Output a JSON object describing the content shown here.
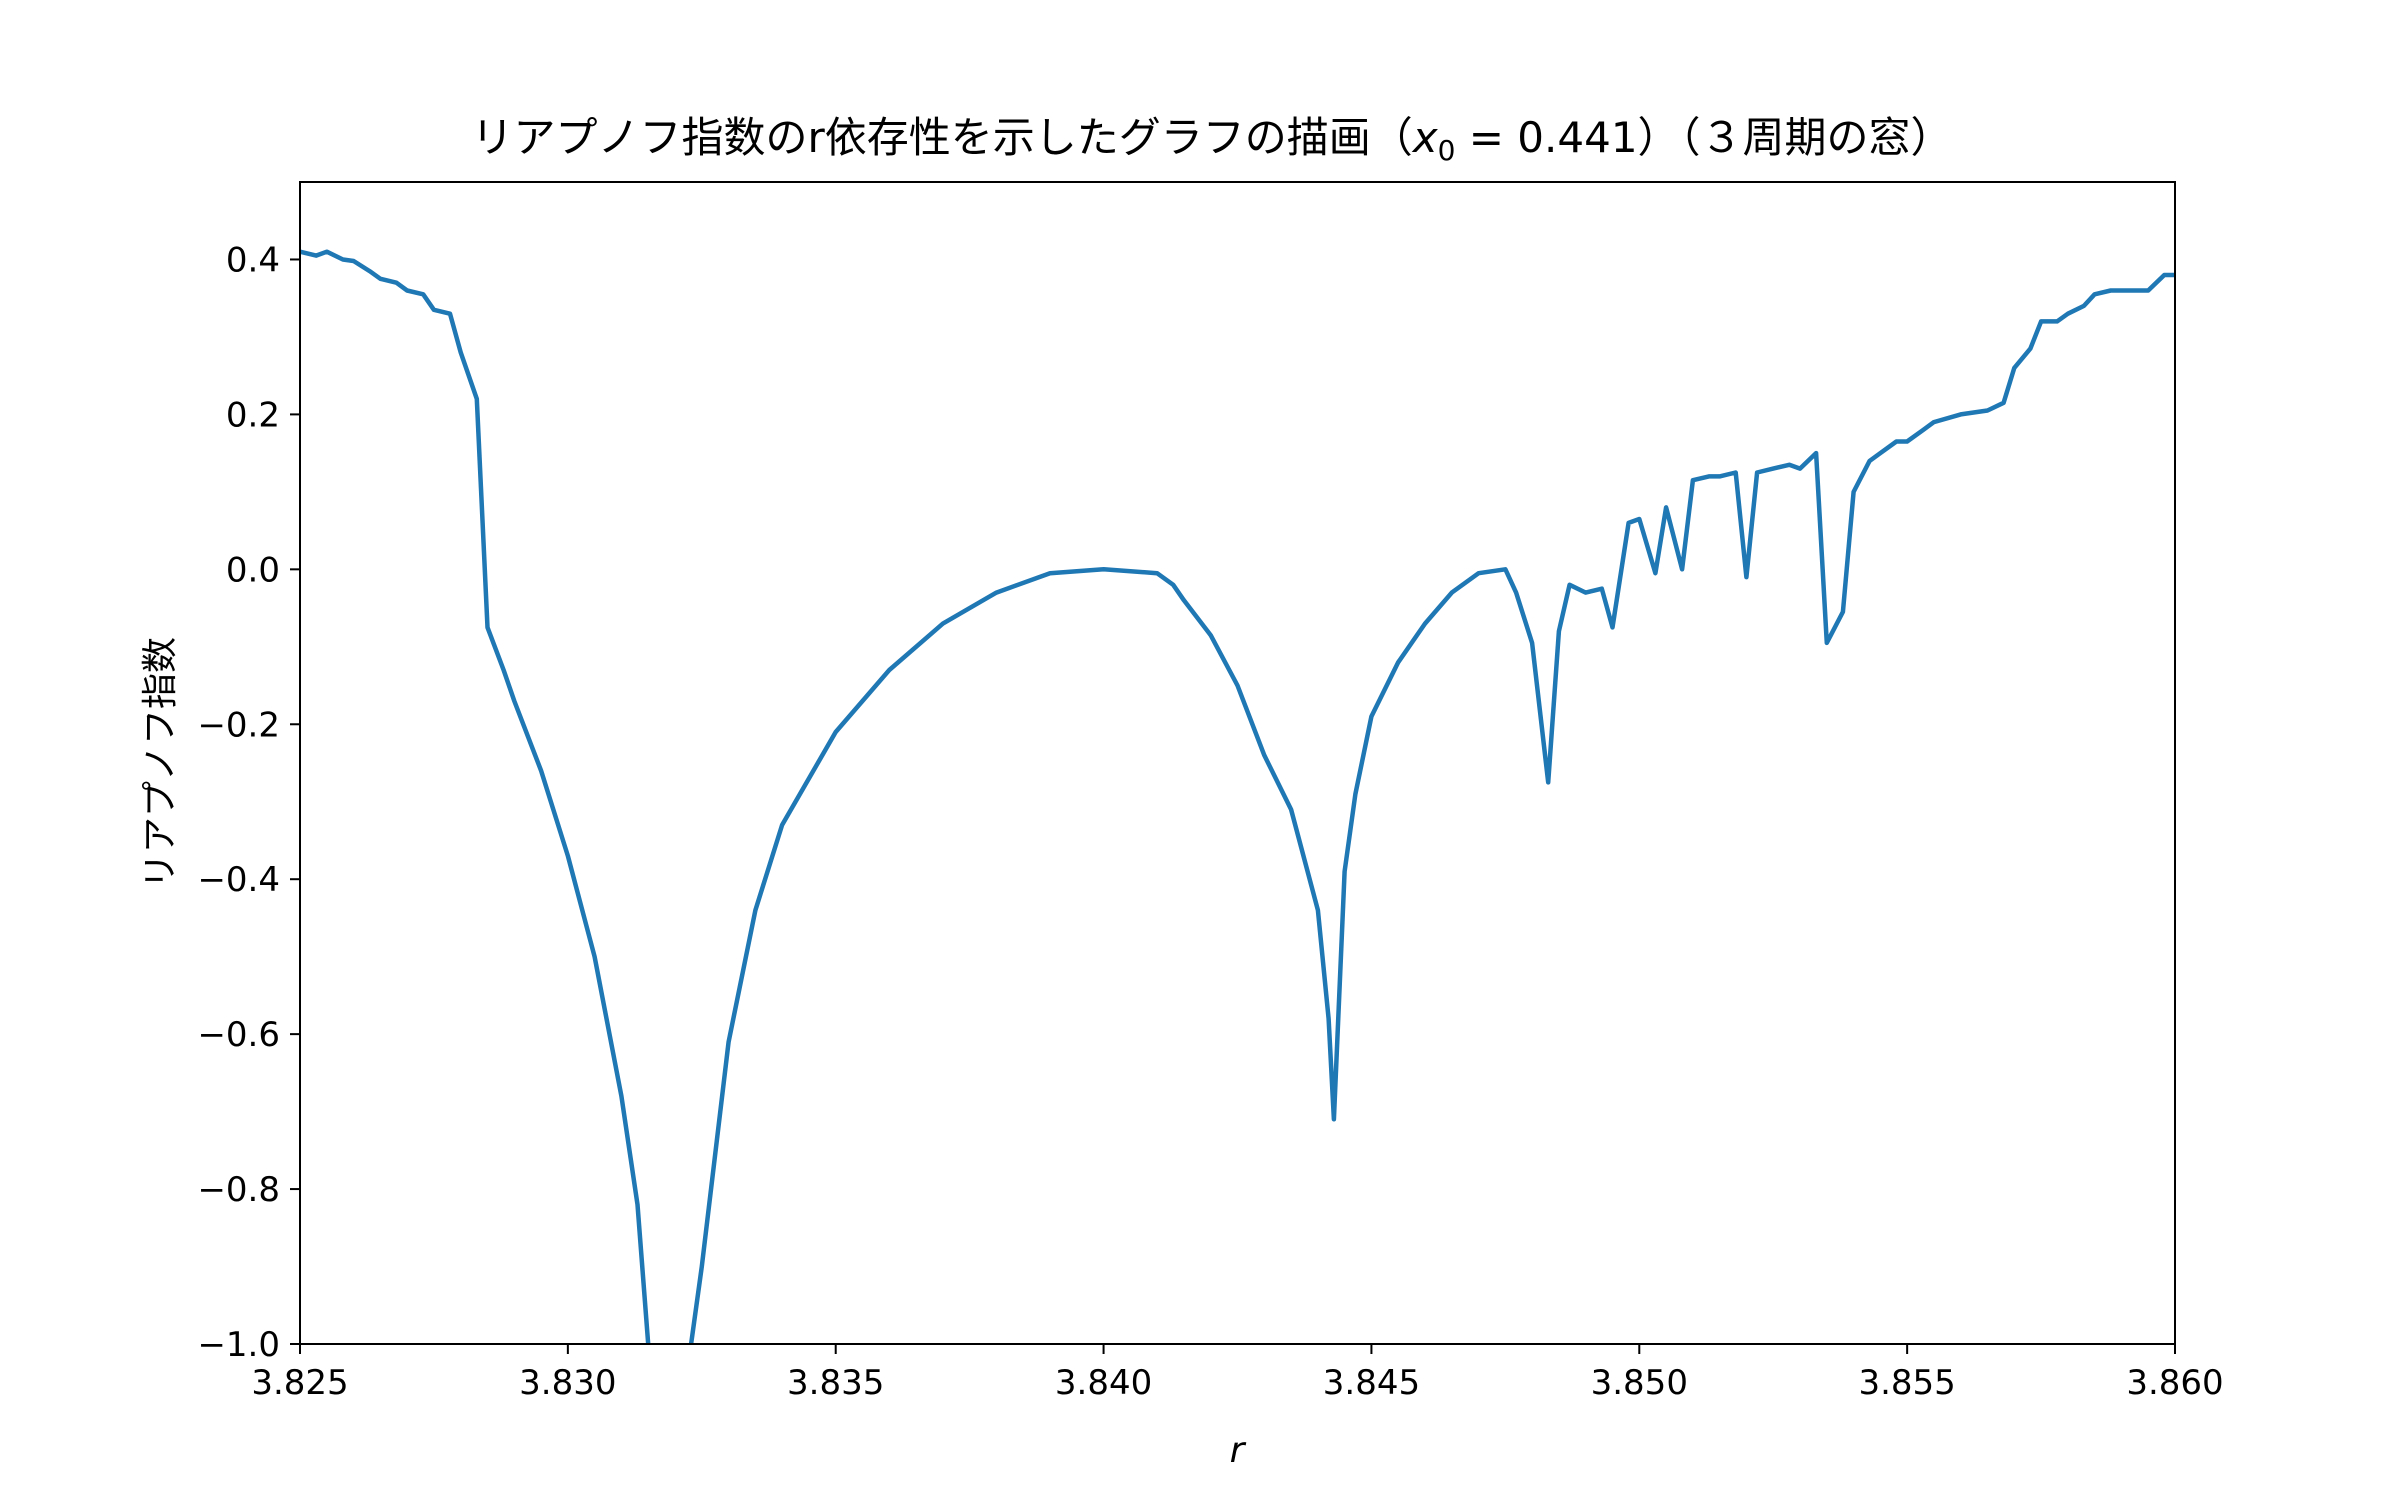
{
  "chart_data": {
    "type": "line",
    "title_prefix": "リアプノフ指数のr依存性を示したグラフの描画（",
    "title_var": "x",
    "title_sub": "0",
    "title_suffix": " = 0.441）（３周期の窓）",
    "xlabel": "r",
    "ylabel": "リアプノフ指数",
    "xlim": [
      3.825,
      3.86
    ],
    "ylim": [
      -1.0,
      0.5
    ],
    "xticks": [
      3.825,
      3.83,
      3.835,
      3.84,
      3.845,
      3.85,
      3.855,
      3.86
    ],
    "xtick_labels": [
      "3.825",
      "3.830",
      "3.835",
      "3.840",
      "3.845",
      "3.850",
      "3.855",
      "3.860"
    ],
    "yticks": [
      0.4,
      0.2,
      0.0,
      -0.2,
      -0.4,
      -0.6,
      -0.8,
      -1.0
    ],
    "ytick_labels": [
      "0.4",
      "0.2",
      "0.0",
      "−0.2",
      "−0.4",
      "−0.6",
      "−0.8",
      "−1.0"
    ],
    "grid": false,
    "line_color": "#1f77b4",
    "series": [
      {
        "x": [
          3.825,
          3.8253,
          3.8255,
          3.8258,
          3.826,
          3.8263,
          3.8265,
          3.8268,
          3.827,
          3.8273,
          3.8275,
          3.8278,
          3.828,
          3.8283,
          3.8285,
          3.8288,
          3.829,
          3.8295,
          3.83,
          3.8305,
          3.831,
          3.8313,
          3.8315,
          3.8318,
          3.832,
          3.8323,
          3.8325,
          3.833,
          3.8335,
          3.834,
          3.835,
          3.836,
          3.837,
          3.838,
          3.839,
          3.84,
          3.841,
          3.8413,
          3.8415,
          3.842,
          3.8425,
          3.843,
          3.8435,
          3.844,
          3.8442,
          3.8443,
          3.8445,
          3.8447,
          3.845,
          3.8455,
          3.846,
          3.8465,
          3.847,
          3.8475,
          3.8477,
          3.848,
          3.8483,
          3.8485,
          3.8487,
          3.849,
          3.8493,
          3.8495,
          3.8498,
          3.85,
          3.8503,
          3.8505,
          3.8508,
          3.851,
          3.8513,
          3.8515,
          3.8518,
          3.852,
          3.8522,
          3.8525,
          3.8528,
          3.853,
          3.8533,
          3.8535,
          3.8538,
          3.854,
          3.8543,
          3.8545,
          3.8548,
          3.855,
          3.8553,
          3.8555,
          3.856,
          3.8565,
          3.8568,
          3.857,
          3.8573,
          3.8575,
          3.8578,
          3.858,
          3.8583,
          3.8585,
          3.8588,
          3.859,
          3.8593,
          3.8595,
          3.8598,
          3.86
        ],
        "y": [
          0.41,
          0.405,
          0.41,
          0.4,
          0.398,
          0.385,
          0.375,
          0.37,
          0.36,
          0.355,
          0.335,
          0.33,
          0.28,
          0.22,
          -0.075,
          -0.13,
          -0.17,
          -0.26,
          -0.37,
          -0.5,
          -0.68,
          -0.82,
          -1.0,
          -1.05,
          -1.05,
          -1.0,
          -0.9,
          -0.61,
          -0.44,
          -0.33,
          -0.21,
          -0.13,
          -0.07,
          -0.03,
          -0.005,
          0.0,
          -0.005,
          -0.02,
          -0.04,
          -0.085,
          -0.15,
          -0.24,
          -0.31,
          -0.44,
          -0.58,
          -0.71,
          -0.39,
          -0.29,
          -0.19,
          -0.12,
          -0.07,
          -0.03,
          -0.005,
          0.0,
          -0.03,
          -0.095,
          -0.275,
          -0.08,
          -0.02,
          -0.03,
          -0.025,
          -0.075,
          0.06,
          0.065,
          -0.005,
          0.08,
          0.0,
          0.115,
          0.12,
          0.12,
          0.125,
          -0.01,
          0.125,
          0.13,
          0.135,
          0.13,
          0.15,
          -0.095,
          -0.055,
          0.1,
          0.14,
          0.15,
          0.165,
          0.165,
          0.18,
          0.19,
          0.2,
          0.205,
          0.215,
          0.26,
          0.285,
          0.32,
          0.32,
          0.33,
          0.34,
          0.355,
          0.36,
          0.36,
          0.36,
          0.36,
          0.38,
          0.38
        ]
      }
    ]
  }
}
